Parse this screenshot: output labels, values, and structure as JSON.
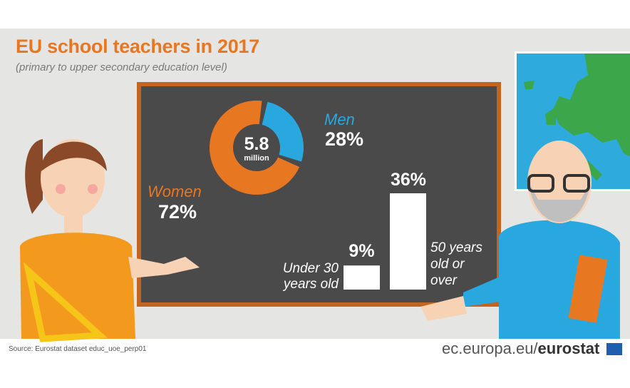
{
  "title": "EU school teachers in 2017",
  "subtitle": "(primary to upper secondary education level)",
  "colors": {
    "women": "#e87722",
    "men": "#29a8e0",
    "board": "#4a4a4a",
    "frame": "#c4651f",
    "bars": "#ffffff"
  },
  "chart_data": [
    {
      "type": "pie",
      "variant": "donut",
      "center_label": "5.8",
      "center_sublabel": "million",
      "slices": [
        {
          "name": "Women",
          "value": 72,
          "label": "72%"
        },
        {
          "name": "Men",
          "value": 28,
          "label": "28%"
        }
      ]
    },
    {
      "type": "bar",
      "categories": [
        "Under 30 years old",
        "50 years old or over"
      ],
      "values": [
        9,
        36
      ],
      "data_labels": [
        "9%",
        "36%"
      ],
      "category_labels": [
        [
          "Under 30",
          "years old"
        ],
        [
          "50 years",
          "old or",
          "over"
        ]
      ]
    }
  ],
  "footer": {
    "source": "Source: Eurostat dataset educ_uoe_perp01",
    "site": "ec.europa.eu/",
    "brand": "eurostat"
  }
}
